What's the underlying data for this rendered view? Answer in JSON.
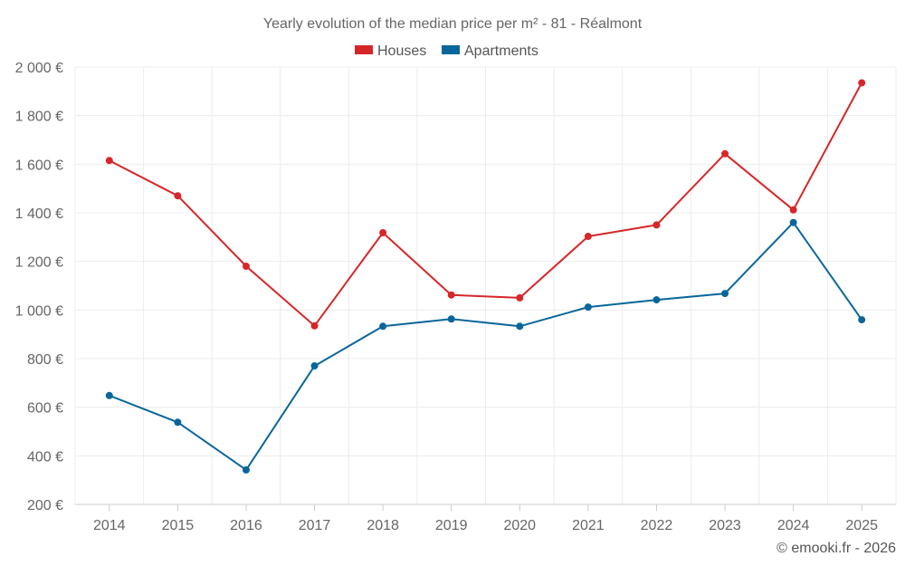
{
  "chart_data": {
    "type": "line",
    "title": "Yearly evolution of the median price per m² - 81 - Réalmont",
    "xlabel": "",
    "ylabel": "",
    "categories": [
      "2014",
      "2015",
      "2016",
      "2017",
      "2018",
      "2019",
      "2020",
      "2021",
      "2022",
      "2023",
      "2024",
      "2025"
    ],
    "series": [
      {
        "name": "Houses",
        "color": "#d62728",
        "values": [
          1615,
          1470,
          1180,
          935,
          1318,
          1062,
          1050,
          1303,
          1350,
          1643,
          1412,
          1935
        ]
      },
      {
        "name": "Apartments",
        "color": "#08669a",
        "values": [
          648,
          538,
          342,
          770,
          933,
          963,
          933,
          1012,
          1042,
          1068,
          1360,
          960
        ]
      }
    ],
    "ylim": [
      200,
      2000
    ],
    "yticks": [
      200,
      400,
      600,
      800,
      1000,
      1200,
      1400,
      1600,
      1800,
      2000
    ],
    "ytick_labels": [
      "200 €",
      "400 €",
      "600 €",
      "800 €",
      "1 000 €",
      "1 200 €",
      "1 400 €",
      "1 600 €",
      "1 800 €",
      "2 000 €"
    ],
    "grid": true,
    "legend_position": "top-center"
  },
  "credit": "© emooki.fr - 2026"
}
